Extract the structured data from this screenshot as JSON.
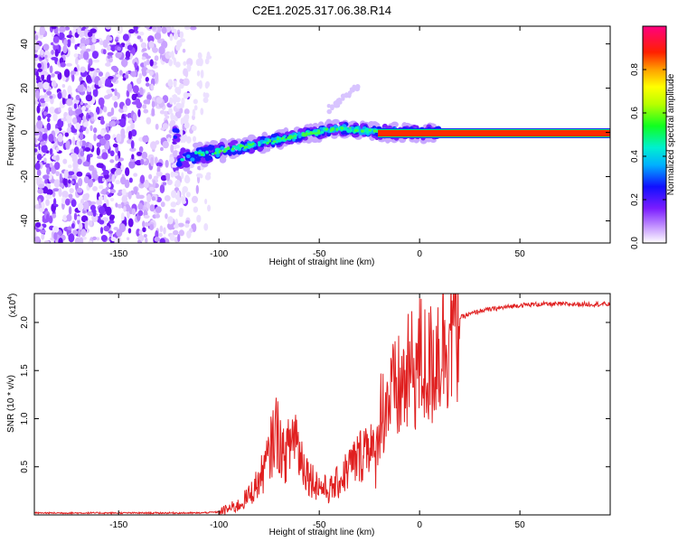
{
  "title": "C2E1.2025.317.06.38.R14",
  "chart_data": [
    {
      "type": "heatmap",
      "title": "C2E1.2025.317.06.38.R14",
      "xlabel": "Height of straight line (km)",
      "ylabel": "Frequency (Hz)",
      "xlim": [
        -192,
        95
      ],
      "ylim": [
        -50,
        48
      ],
      "xticks": [
        -150,
        -100,
        -50,
        0,
        50
      ],
      "yticks": [
        -40,
        -20,
        0,
        20,
        40
      ],
      "colorbar": {
        "label": "Normalized spectral amplitude",
        "range": [
          0,
          1
        ],
        "ticks": [
          0.0,
          0.2,
          0.4,
          0.6,
          0.8
        ]
      },
      "features": {
        "noise_region_x": [
          -192,
          -108
        ],
        "chirp_track": {
          "x": [
            -120,
            -80,
            -40,
            -20,
            0,
            10,
            95
          ],
          "y": [
            -12,
            -5,
            2,
            0,
            0,
            0,
            0
          ]
        },
        "steady_line": {
          "x": [
            -20,
            95
          ],
          "frequency": 0,
          "amplitude": 1.0
        }
      }
    },
    {
      "type": "line",
      "ylabel": "SNR (10 * v/v)",
      "xlabel": "Height of straight line (km)",
      "exponent_label": "(x10",
      "exponent_power": "4",
      "exponent_close": ")",
      "xlim": [
        -192,
        95
      ],
      "ylim": [
        0,
        2.3
      ],
      "xticks": [
        -150,
        -100,
        -50,
        0,
        50
      ],
      "yticks": [
        0.5,
        1.0,
        1.5,
        2.0
      ],
      "ytick_labels": [
        "0.5",
        "1.0",
        "1.5",
        "2.0"
      ],
      "color": "#e02020",
      "series": [
        {
          "name": "SNR",
          "x": [
            -192,
            -110,
            -100,
            -90,
            -85,
            -80,
            -75,
            -72,
            -70,
            -68,
            -65,
            -62,
            -60,
            -55,
            -50,
            -45,
            -40,
            -35,
            -30,
            -25,
            -22,
            -20,
            -15,
            -10,
            -5,
            0,
            5,
            8,
            10,
            15,
            20,
            30,
            40,
            50,
            60,
            80,
            95
          ],
          "y": [
            0.02,
            0.02,
            0.03,
            0.1,
            0.2,
            0.35,
            0.6,
            0.9,
            0.8,
            0.6,
            0.7,
            0.9,
            0.65,
            0.4,
            0.3,
            0.25,
            0.35,
            0.5,
            0.6,
            0.8,
            0.5,
            1.05,
            1.2,
            1.3,
            1.45,
            1.6,
            1.5,
            1.7,
            1.75,
            1.95,
            2.05,
            2.12,
            2.15,
            2.18,
            2.19,
            2.19,
            2.19
          ]
        }
      ]
    }
  ]
}
